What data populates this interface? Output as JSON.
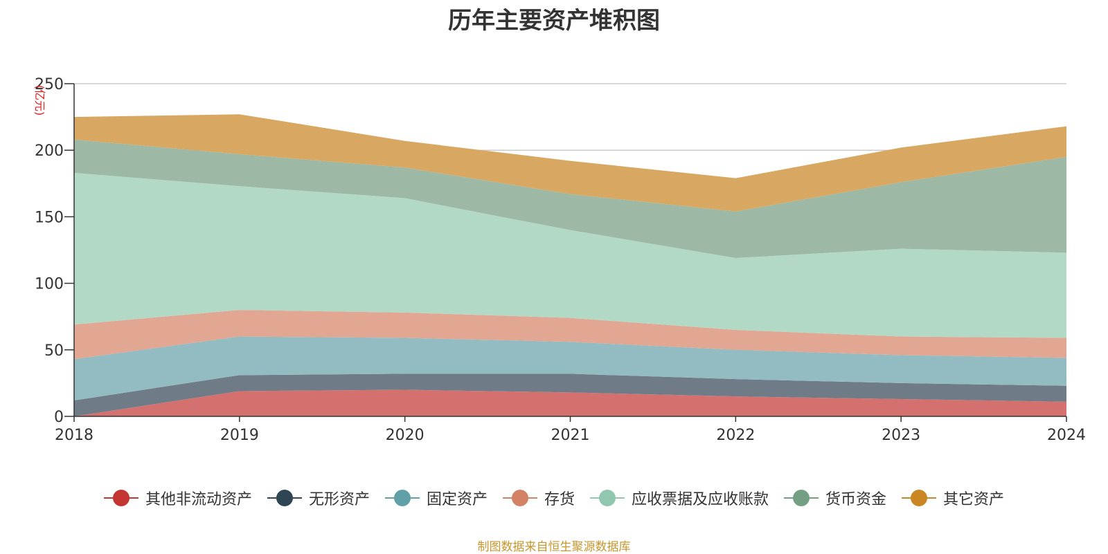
{
  "chart_data": {
    "type": "area",
    "stacked": true,
    "title": "历年主要资产堆积图",
    "ylabel": "(亿元)",
    "xlabel": "",
    "ylim": [
      0,
      250
    ],
    "yticks": [
      0,
      50,
      100,
      150,
      200,
      250
    ],
    "categories": [
      "2018",
      "2019",
      "2020",
      "2021",
      "2022",
      "2023",
      "2024"
    ],
    "series": [
      {
        "name": "其他非流动资产",
        "color": "#d4706e",
        "legend_color": "#c23531",
        "values": [
          0,
          19,
          20,
          18,
          15,
          13,
          11
        ]
      },
      {
        "name": "无形资产",
        "color": "#6f7b87",
        "legend_color": "#2f4554",
        "values": [
          12,
          12,
          12,
          14,
          13,
          12,
          12
        ]
      },
      {
        "name": "固定资产",
        "color": "#93bcc2",
        "legend_color": "#61a0a8",
        "values": [
          31,
          29,
          27,
          24,
          22,
          21,
          21
        ]
      },
      {
        "name": "存货",
        "color": "#e2a792",
        "legend_color": "#d48265",
        "values": [
          26,
          20,
          19,
          18,
          15,
          14,
          15
        ]
      },
      {
        "name": "应收票据及应收账款",
        "color": "#b1d9c6",
        "legend_color": "#91c7ae",
        "values": [
          114,
          93,
          86,
          66,
          54,
          66,
          64
        ]
      },
      {
        "name": "货币资金",
        "color": "#9db8a4",
        "legend_color": "#749f83",
        "values": [
          25,
          24,
          23,
          27,
          35,
          50,
          72
        ]
      },
      {
        "name": "其它资产",
        "color": "#d8a862",
        "legend_color": "#ca8622",
        "values": [
          17,
          30,
          20,
          25,
          25,
          26,
          23
        ]
      }
    ]
  },
  "source_note": "制图数据来自恒生聚源数据库"
}
